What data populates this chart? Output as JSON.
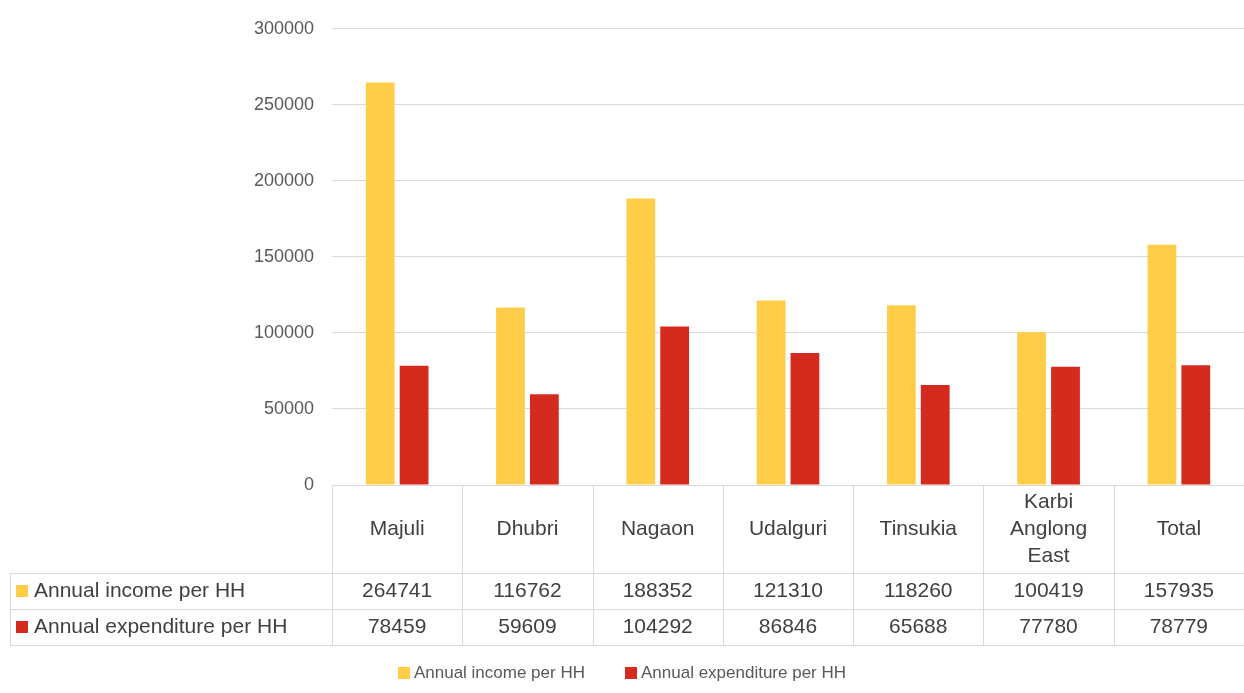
{
  "chart_data": {
    "type": "bar",
    "categories": [
      "Majuli",
      "Dhubri",
      "Nagaon",
      "Udalguri",
      "Tinsukia",
      "Karbi Anglong East",
      "Total"
    ],
    "series": [
      {
        "name": "Annual income per HH",
        "color": "#ffcd48",
        "values": [
          264741,
          116762,
          188352,
          121310,
          118260,
          100419,
          157935
        ]
      },
      {
        "name": "Annual expenditure per HH",
        "color": "#d52b1e",
        "values": [
          78459,
          59609,
          104292,
          86846,
          65688,
          77780,
          78779
        ]
      }
    ],
    "ylim": [
      0,
      300000
    ],
    "yticks": [
      0,
      50000,
      100000,
      150000,
      200000,
      250000,
      300000
    ],
    "grid": "y",
    "legend": "bottom",
    "data_labels": true
  }
}
